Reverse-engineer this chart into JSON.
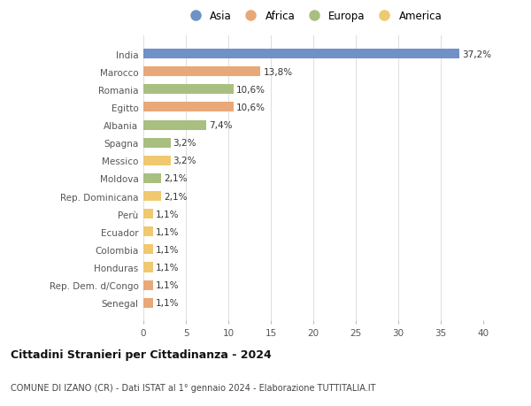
{
  "countries": [
    "India",
    "Marocco",
    "Romania",
    "Egitto",
    "Albania",
    "Spagna",
    "Messico",
    "Moldova",
    "Rep. Dominicana",
    "Perù",
    "Ecuador",
    "Colombia",
    "Honduras",
    "Rep. Dem. d/Congo",
    "Senegal"
  ],
  "values": [
    37.2,
    13.8,
    10.6,
    10.6,
    7.4,
    3.2,
    3.2,
    2.1,
    2.1,
    1.1,
    1.1,
    1.1,
    1.1,
    1.1,
    1.1
  ],
  "labels": [
    "37,2%",
    "13,8%",
    "10,6%",
    "10,6%",
    "7,4%",
    "3,2%",
    "3,2%",
    "2,1%",
    "2,1%",
    "1,1%",
    "1,1%",
    "1,1%",
    "1,1%",
    "1,1%",
    "1,1%"
  ],
  "continent": [
    "Asia",
    "Africa",
    "Europa",
    "Africa",
    "Europa",
    "Europa",
    "America",
    "Europa",
    "America",
    "America",
    "America",
    "America",
    "America",
    "Africa",
    "Africa"
  ],
  "colors": {
    "Asia": "#7090c8",
    "Africa": "#e8a878",
    "Europa": "#a8bf80",
    "America": "#f0c870"
  },
  "legend_order": [
    "Asia",
    "Africa",
    "Europa",
    "America"
  ],
  "xlim": [
    0,
    40
  ],
  "xticks": [
    0,
    5,
    10,
    15,
    20,
    25,
    30,
    35,
    40
  ],
  "title": "Cittadini Stranieri per Cittadinanza - 2024",
  "subtitle": "COMUNE DI IZANO (CR) - Dati ISTAT al 1° gennaio 2024 - Elaborazione TUTTITALIA.IT",
  "background_color": "#ffffff",
  "grid_color": "#dddddd",
  "bar_height": 0.55,
  "label_fontsize": 7.5,
  "tick_fontsize": 7.5,
  "title_fontsize": 9.0,
  "subtitle_fontsize": 7.0
}
